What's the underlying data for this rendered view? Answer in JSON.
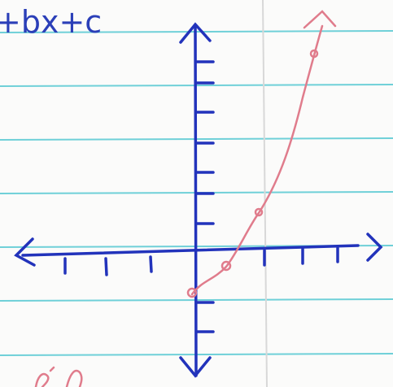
{
  "texts": {
    "equation_fragment": "+bx+c"
  }
}
